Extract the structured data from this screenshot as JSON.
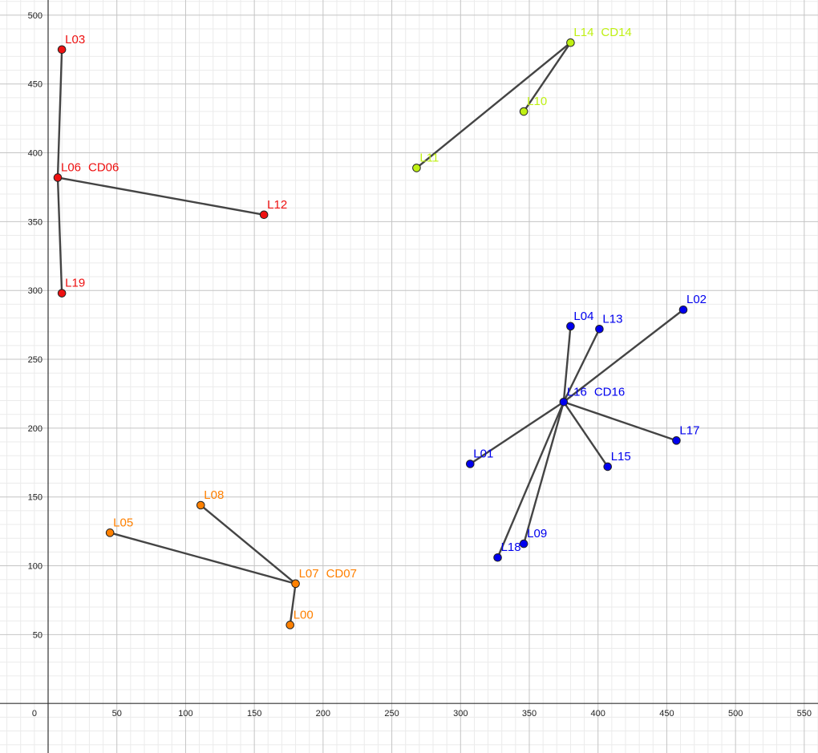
{
  "chart_data": {
    "type": "scatter",
    "title": "",
    "xlabel": "",
    "ylabel": "",
    "xlim": [
      -35,
      560
    ],
    "ylim": [
      -36,
      511
    ],
    "grid": true,
    "x_ticks": [
      0,
      50,
      100,
      150,
      200,
      250,
      300,
      350,
      400,
      450,
      500,
      550
    ],
    "y_ticks": [
      50,
      100,
      150,
      200,
      250,
      300,
      350,
      400,
      450,
      500
    ],
    "clusters": [
      {
        "color": "#ee1111",
        "center": {
          "label": "L06",
          "tag": "CD06",
          "x": 7,
          "y": 382
        },
        "points": [
          {
            "label": "L03",
            "x": 10,
            "y": 475
          },
          {
            "label": "L12",
            "x": 157,
            "y": 355
          },
          {
            "label": "L19",
            "x": 10,
            "y": 298
          }
        ]
      },
      {
        "color": "#bff013",
        "center": {
          "label": "L14",
          "tag": "CD14",
          "x": 380,
          "y": 480
        },
        "points": [
          {
            "label": "L10",
            "x": 346,
            "y": 430
          },
          {
            "label": "L11",
            "x": 268,
            "y": 389
          }
        ]
      },
      {
        "color": "#0000ee",
        "center": {
          "label": "L16",
          "tag": "CD16",
          "x": 375,
          "y": 219
        },
        "points": [
          {
            "label": "L02",
            "x": 462,
            "y": 286
          },
          {
            "label": "L04",
            "x": 380,
            "y": 274
          },
          {
            "label": "L13",
            "x": 401,
            "y": 272
          },
          {
            "label": "L17",
            "x": 457,
            "y": 191
          },
          {
            "label": "L15",
            "x": 407,
            "y": 172
          },
          {
            "label": "L01",
            "x": 307,
            "y": 174
          },
          {
            "label": "L09",
            "x": 346,
            "y": 116
          },
          {
            "label": "L18",
            "x": 327,
            "y": 106
          }
        ]
      },
      {
        "color": "#ff8000",
        "center": {
          "label": "L07",
          "tag": "CD07",
          "x": 180,
          "y": 87
        },
        "points": [
          {
            "label": "L08",
            "x": 111,
            "y": 144
          },
          {
            "label": "L05",
            "x": 45,
            "y": 124
          },
          {
            "label": "L00",
            "x": 176,
            "y": 57
          }
        ]
      }
    ]
  }
}
